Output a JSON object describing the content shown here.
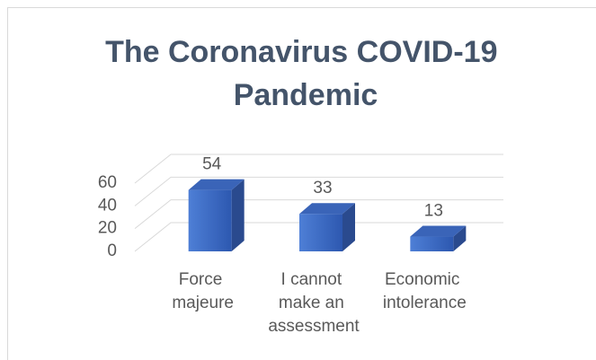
{
  "chart_data": {
    "type": "bar3d",
    "title": "The Coronavirus COVID-19 Pandemic",
    "categories": [
      "Force majeure",
      "I cannot make an assessment",
      "Economic intolerance"
    ],
    "values": [
      54,
      33,
      13
    ],
    "color": "#4472c4",
    "ylim": [
      0,
      60
    ],
    "yticks": [
      0,
      20,
      40,
      60
    ],
    "grid": true
  }
}
